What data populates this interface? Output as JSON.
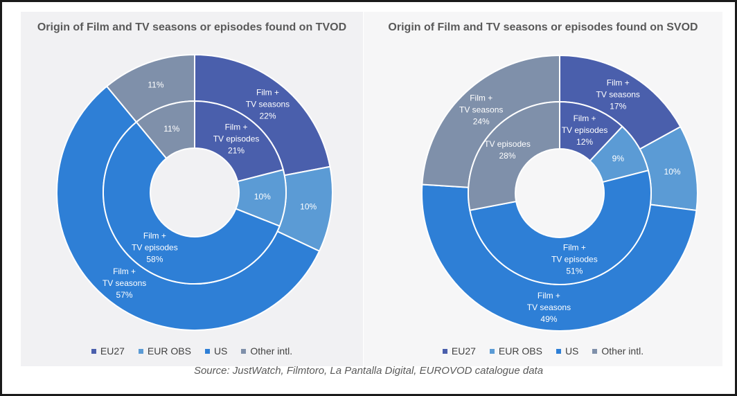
{
  "source": "Source: JustWatch, Filmtoro, La Pantalla Digital, EUROVOD catalogue data",
  "colors": {
    "EU27": "#4a5fac",
    "EUR OBS": "#5b9bd5",
    "US": "#2e7fd6",
    "Other intl.": "#7f90aa"
  },
  "legend": [
    "EU27",
    "EUR OBS",
    "US",
    "Other intl."
  ],
  "chart_data": [
    {
      "type": "pie",
      "subtype": "nested-donut",
      "title": "Origin of Film and TV seasons or episodes found on TVOD",
      "categories": [
        "EU27",
        "EUR OBS",
        "US",
        "Other intl."
      ],
      "series": [
        {
          "ring": "outer",
          "values": [
            22,
            10,
            57,
            11
          ],
          "labels": [
            [
              "Film +",
              "TV seasons",
              "22%"
            ],
            [
              "10%"
            ],
            [
              "Film +",
              "TV seasons",
              "57%"
            ],
            [
              "11%"
            ]
          ]
        },
        {
          "ring": "inner",
          "values": [
            21,
            10,
            58,
            11
          ],
          "labels": [
            [
              "Film +",
              "TV episodes",
              "21%"
            ],
            [
              "10%"
            ],
            [
              "Film +",
              "TV episodes",
              "58%"
            ],
            [
              "11%"
            ]
          ]
        }
      ]
    },
    {
      "type": "pie",
      "subtype": "nested-donut",
      "title": "Origin of Film and TV seasons or episodes found on SVOD",
      "categories": [
        "EU27",
        "EUR OBS",
        "US",
        "Other intl."
      ],
      "series": [
        {
          "ring": "outer",
          "values": [
            17,
            10,
            49,
            24
          ],
          "labels": [
            [
              "Film +",
              "TV seasons",
              "17%"
            ],
            [
              "10%"
            ],
            [
              "Film +",
              "TV seasons",
              "49%"
            ],
            [
              "Film +",
              "TV seasons",
              "24%"
            ]
          ]
        },
        {
          "ring": "inner",
          "values": [
            12,
            9,
            51,
            28
          ],
          "labels": [
            [
              "Film +",
              "TV episodes",
              "12%"
            ],
            [
              "9%"
            ],
            [
              "Film +",
              "TV episodes",
              "51%"
            ],
            [
              "TV episodes",
              "28%"
            ]
          ]
        }
      ]
    }
  ]
}
